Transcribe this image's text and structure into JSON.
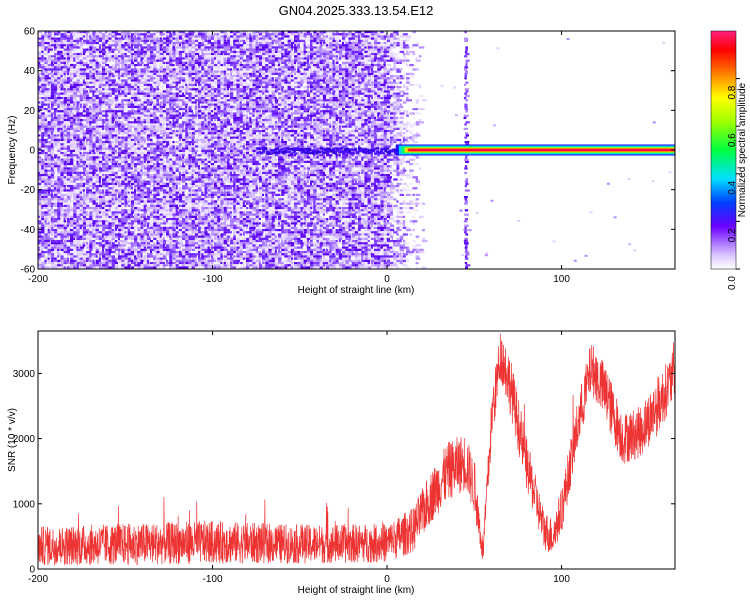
{
  "title": "GN04.2025.333.13.54.E12",
  "chart_data": [
    {
      "type": "heatmap",
      "xlabel": "Height of straight line (km)",
      "ylabel": "Frequency (Hz)",
      "xlim": [
        -200,
        165
      ],
      "ylim": [
        -60,
        60
      ],
      "xticks": [
        "-200",
        "-100",
        "0",
        "100"
      ],
      "yticks": [
        "-60",
        "-40",
        "-20",
        "0",
        "20",
        "40",
        "60"
      ],
      "colorbar": {
        "label": "Normalized spectral amplitude",
        "range": [
          0,
          1
        ],
        "ticks": [
          "0.0",
          "0.2",
          "0.4",
          "0.6",
          "0.8"
        ]
      },
      "features": {
        "noise_region_x": [
          -200,
          12
        ],
        "vertical_stripe_x": 45,
        "carrier_line": {
          "frequency": 0,
          "x_start": 5,
          "x_end": 165,
          "amplitude": 1.0
        }
      }
    },
    {
      "type": "line",
      "xlabel": "Height of straight line (km)",
      "ylabel": "SNR (10 * v/v)",
      "xlim": [
        -200,
        165
      ],
      "ylim": [
        0,
        3650
      ],
      "xticks": [
        "-200",
        "-100",
        "0",
        "100"
      ],
      "yticks": [
        "0",
        "1000",
        "2000",
        "3000"
      ],
      "color": "#ee3333",
      "envelope": {
        "x": [
          -200,
          -150,
          -100,
          -50,
          0,
          15,
          25,
          35,
          45,
          50,
          55,
          60,
          65,
          70,
          80,
          90,
          95,
          100,
          110,
          117,
          125,
          135,
          145,
          155,
          165
        ],
        "mean": [
          350,
          380,
          410,
          380,
          400,
          600,
          1100,
          1500,
          1650,
          1250,
          250,
          2300,
          3300,
          2900,
          1600,
          600,
          500,
          900,
          2300,
          3100,
          2700,
          2000,
          2100,
          2500,
          3000
        ],
        "half_width": [
          300,
          320,
          330,
          300,
          300,
          350,
          400,
          450,
          450,
          400,
          200,
          400,
          400,
          450,
          400,
          300,
          300,
          350,
          400,
          400,
          450,
          400,
          400,
          450,
          400
        ]
      }
    }
  ]
}
